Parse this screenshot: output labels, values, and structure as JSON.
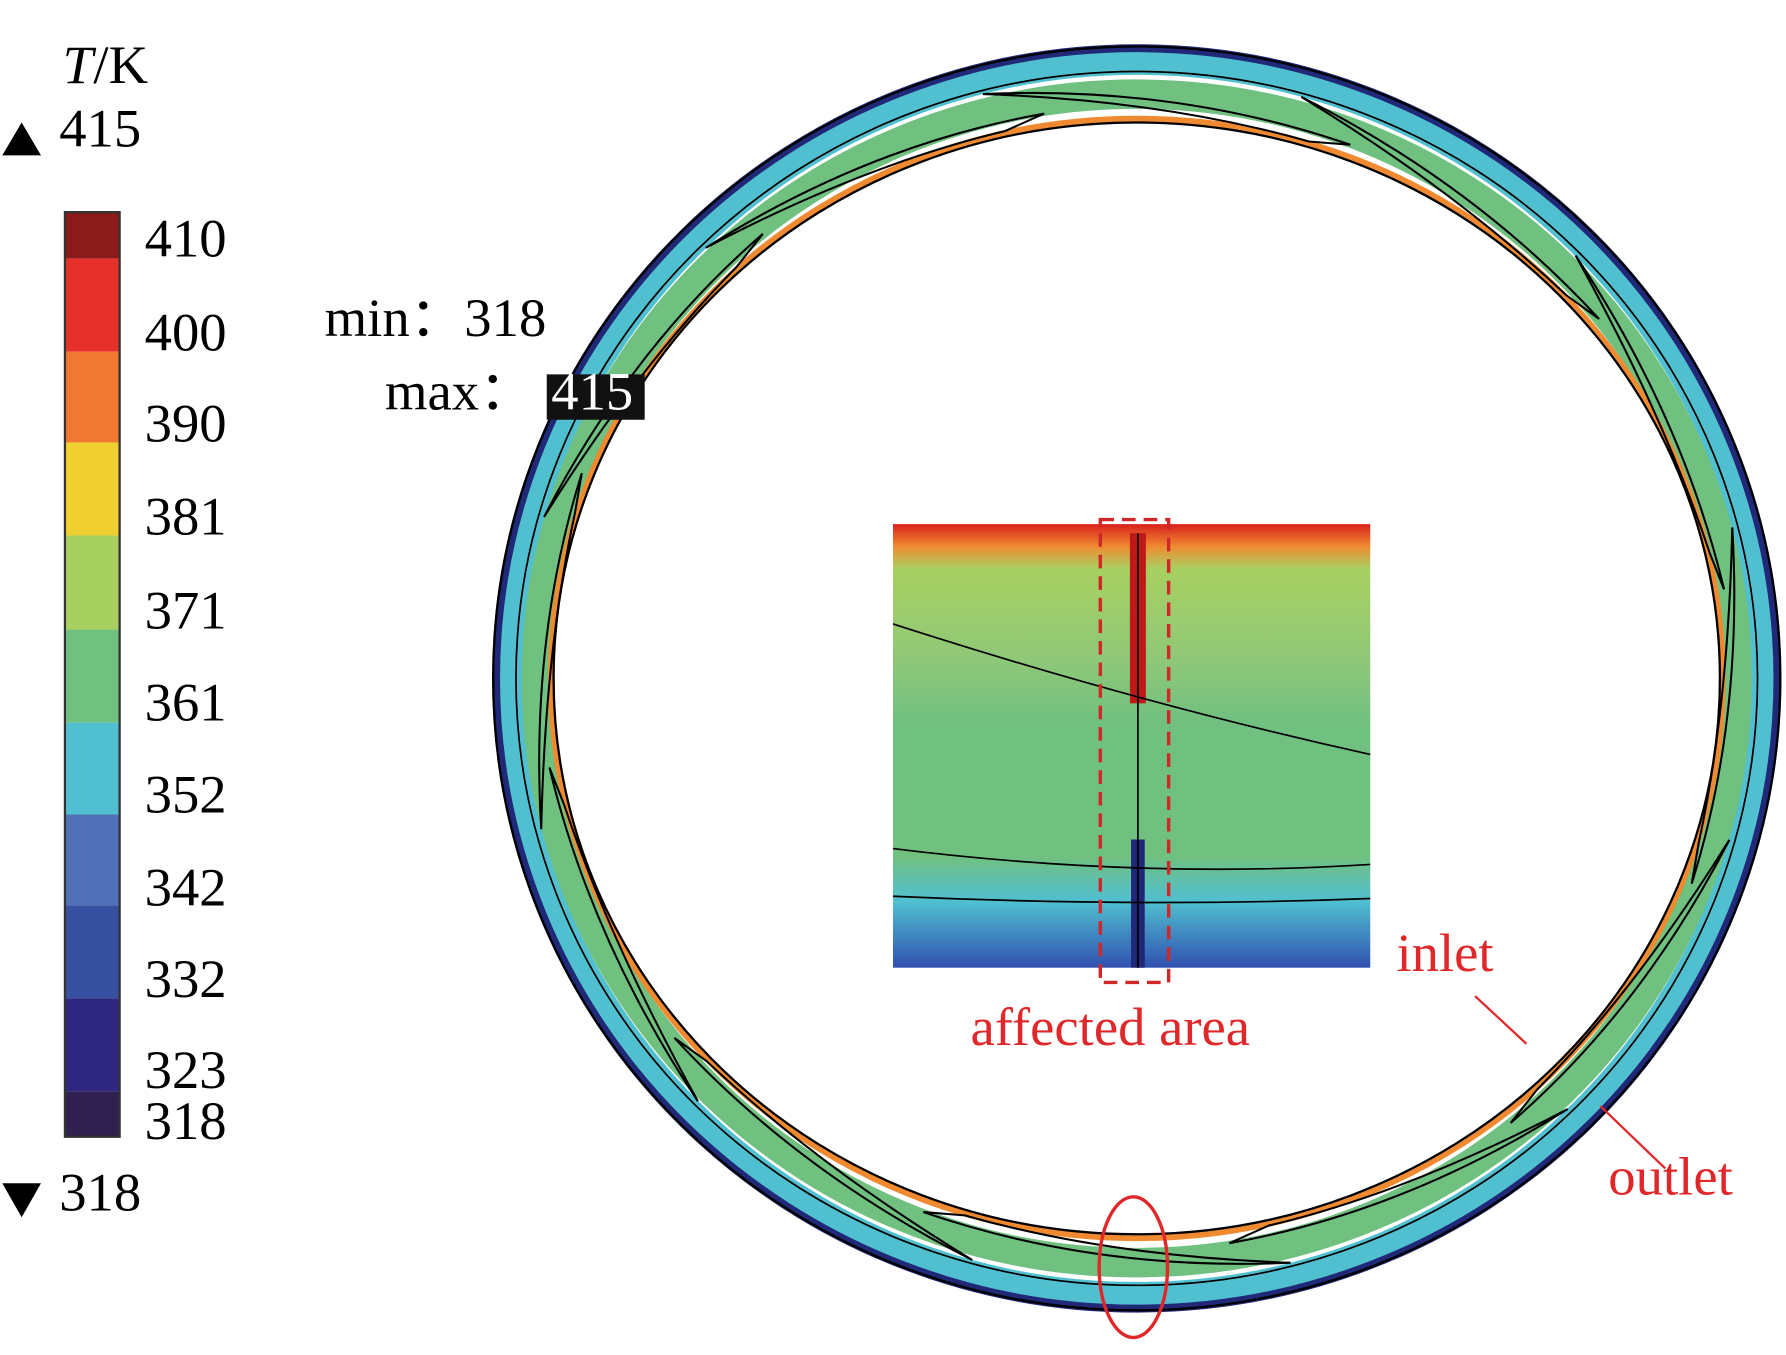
{
  "legend": {
    "title_symbol": "T",
    "title_unit": "/K",
    "max_label": "415",
    "min_label": "318",
    "ticks": [
      "410",
      "400",
      "390",
      "381",
      "371",
      "361",
      "352",
      "342",
      "332",
      "323",
      "318"
    ]
  },
  "annotations": {
    "min": "min：318",
    "max_prefix": "max：",
    "max_value": "415",
    "affected_area": "affected area",
    "inlet": "inlet",
    "outlet": "outlet"
  }
}
